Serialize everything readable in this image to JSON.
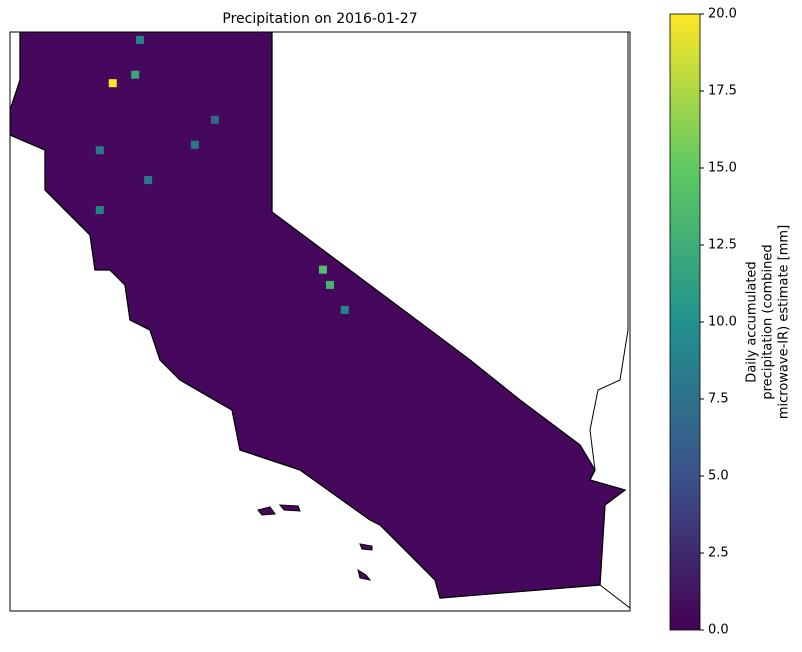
{
  "chart_data": {
    "type": "map",
    "title": "Precipitation on 2016-01-27",
    "lonlim": [
      -124.5,
      -114
    ],
    "latlim": [
      32.5,
      42
    ],
    "colorbar_label": [
      "Daily accumulated",
      "precipitation (combined",
      "microwave-IR) estimate [mm]"
    ],
    "clim": [
      0,
      20
    ],
    "cticks": [
      {
        "value": 0,
        "label": "0.0"
      },
      {
        "value": 2.5,
        "label": "2.5"
      },
      {
        "value": 5,
        "label": "5.0"
      },
      {
        "value": 7.5,
        "label": "7.5"
      },
      {
        "value": 10,
        "label": "10.0"
      },
      {
        "value": 12.5,
        "label": "12.5"
      },
      {
        "value": 15,
        "label": "15.0"
      },
      {
        "value": 17.5,
        "label": "17.5"
      },
      {
        "value": 20,
        "label": "20.0"
      }
    ],
    "colormap": "viridis",
    "cells": {
      "lon": [
        -122.76,
        -119.08,
        -119.2,
        -122.38,
        -122.98,
        -122.98,
        -122.16,
        -121.37,
        -121.03,
        -118.83,
        -122.3
      ],
      "lat": [
        41.16,
        37.85,
        38.1,
        41.3,
        40.06,
        39.08,
        39.57,
        40.15,
        40.56,
        37.44,
        41.87
      ],
      "values": [
        20,
        13,
        14,
        12,
        8,
        9,
        8,
        8,
        7,
        9,
        9
      ]
    }
  }
}
